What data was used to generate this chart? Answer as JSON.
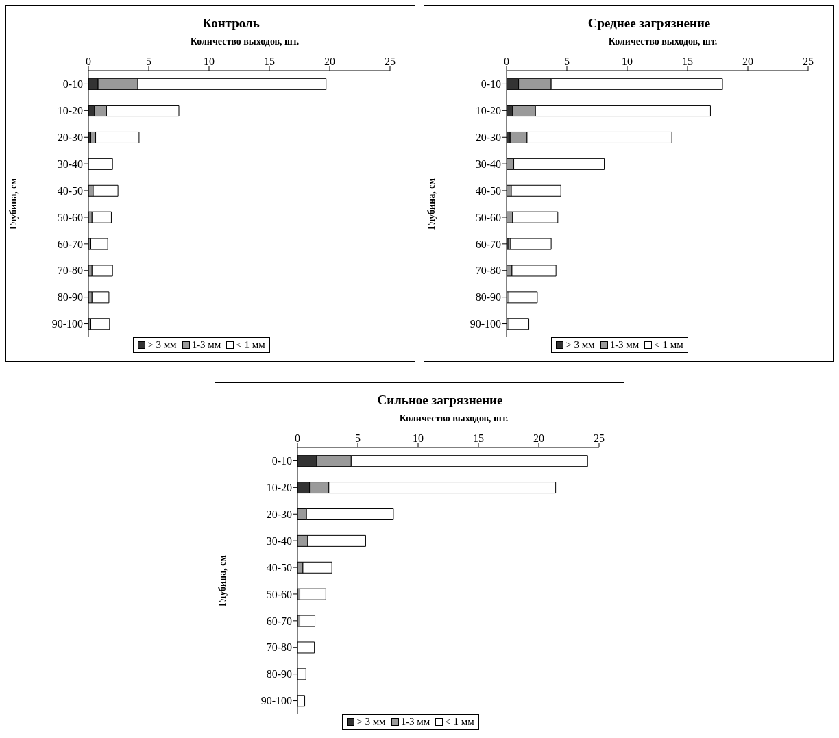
{
  "chart_data": [
    {
      "type": "bar",
      "title": "Контроль",
      "xlabel": "Количество выходов, шт.",
      "ylabel": "Глубина, см",
      "orientation": "horizontal",
      "stacked": true,
      "legend": "bottom",
      "xlim": [
        0,
        25
      ],
      "xticks": [
        0,
        5,
        10,
        15,
        20,
        25
      ],
      "categories": [
        "0-10",
        "10-20",
        "20-30",
        "30-40",
        "40-50",
        "50-60",
        "60-70",
        "70-80",
        "80-90",
        "90-100"
      ],
      "series": [
        {
          "name": "> 3 мм",
          "color": "#333333",
          "values": [
            0.8,
            0.5,
            0.2,
            null,
            0,
            0,
            0,
            0,
            0,
            0
          ]
        },
        {
          "name": "1-3 мм",
          "color": "#9a9a9a",
          "values": [
            3.3,
            1.0,
            0.4,
            0,
            0.4,
            0.3,
            0.2,
            0.3,
            0.3,
            0.2
          ]
        },
        {
          "name": "< 1 мм",
          "color": "#ffffff",
          "values": [
            15.6,
            6.0,
            3.6,
            2.0,
            2.05,
            1.6,
            1.4,
            1.7,
            1.4,
            1.55
          ]
        }
      ]
    },
    {
      "type": "bar",
      "title": "Среднее загрязнение",
      "xlabel": "Количество выходов, шт.",
      "ylabel": "Глубина, см",
      "orientation": "horizontal",
      "stacked": true,
      "legend": "bottom",
      "xlim": [
        0,
        25
      ],
      "xticks": [
        0,
        5,
        10,
        15,
        20,
        25
      ],
      "categories": [
        "0-10",
        "10-20",
        "20-30",
        "30-40",
        "40-50",
        "50-60",
        "60-70",
        "70-80",
        "80-90",
        "90-100"
      ],
      "series": [
        {
          "name": "> 3 мм",
          "color": "#333333",
          "values": [
            1.0,
            0.5,
            0.3,
            0,
            0,
            0,
            0.2,
            0,
            0,
            0
          ]
        },
        {
          "name": "1-3 мм",
          "color": "#9a9a9a",
          "values": [
            2.7,
            1.9,
            1.4,
            0.6,
            0.4,
            0.5,
            0.15,
            0.45,
            0.2,
            0.2
          ]
        },
        {
          "name": "< 1 мм",
          "color": "#ffffff",
          "values": [
            14.2,
            14.5,
            12.0,
            7.5,
            4.1,
            3.75,
            3.35,
            3.65,
            2.35,
            1.65
          ]
        }
      ]
    },
    {
      "type": "bar",
      "title": "Сильное загрязнение",
      "xlabel": "Количество выходов, шт.",
      "ylabel": "Глубина, см",
      "orientation": "horizontal",
      "stacked": true,
      "legend": "bottom",
      "xlim": [
        0,
        25
      ],
      "xticks": [
        0,
        5,
        10,
        15,
        20,
        25
      ],
      "categories": [
        "0-10",
        "10-20",
        "20-30",
        "30-40",
        "40-50",
        "50-60",
        "60-70",
        "70-80",
        "80-90",
        "90-100"
      ],
      "series": [
        {
          "name": "> 3 мм",
          "color": "#333333",
          "values": [
            1.6,
            1.0,
            0,
            null,
            0,
            0,
            0,
            0,
            0,
            0
          ]
        },
        {
          "name": "1-3 мм",
          "color": "#9a9a9a",
          "values": [
            2.85,
            1.6,
            0.75,
            0.85,
            0.45,
            0.2,
            0.2,
            null,
            0,
            0
          ]
        },
        {
          "name": "< 1 мм",
          "color": "#ffffff",
          "values": [
            19.6,
            18.8,
            7.2,
            4.8,
            2.4,
            2.15,
            1.25,
            1.4,
            0.7,
            0.6
          ]
        }
      ]
    }
  ]
}
